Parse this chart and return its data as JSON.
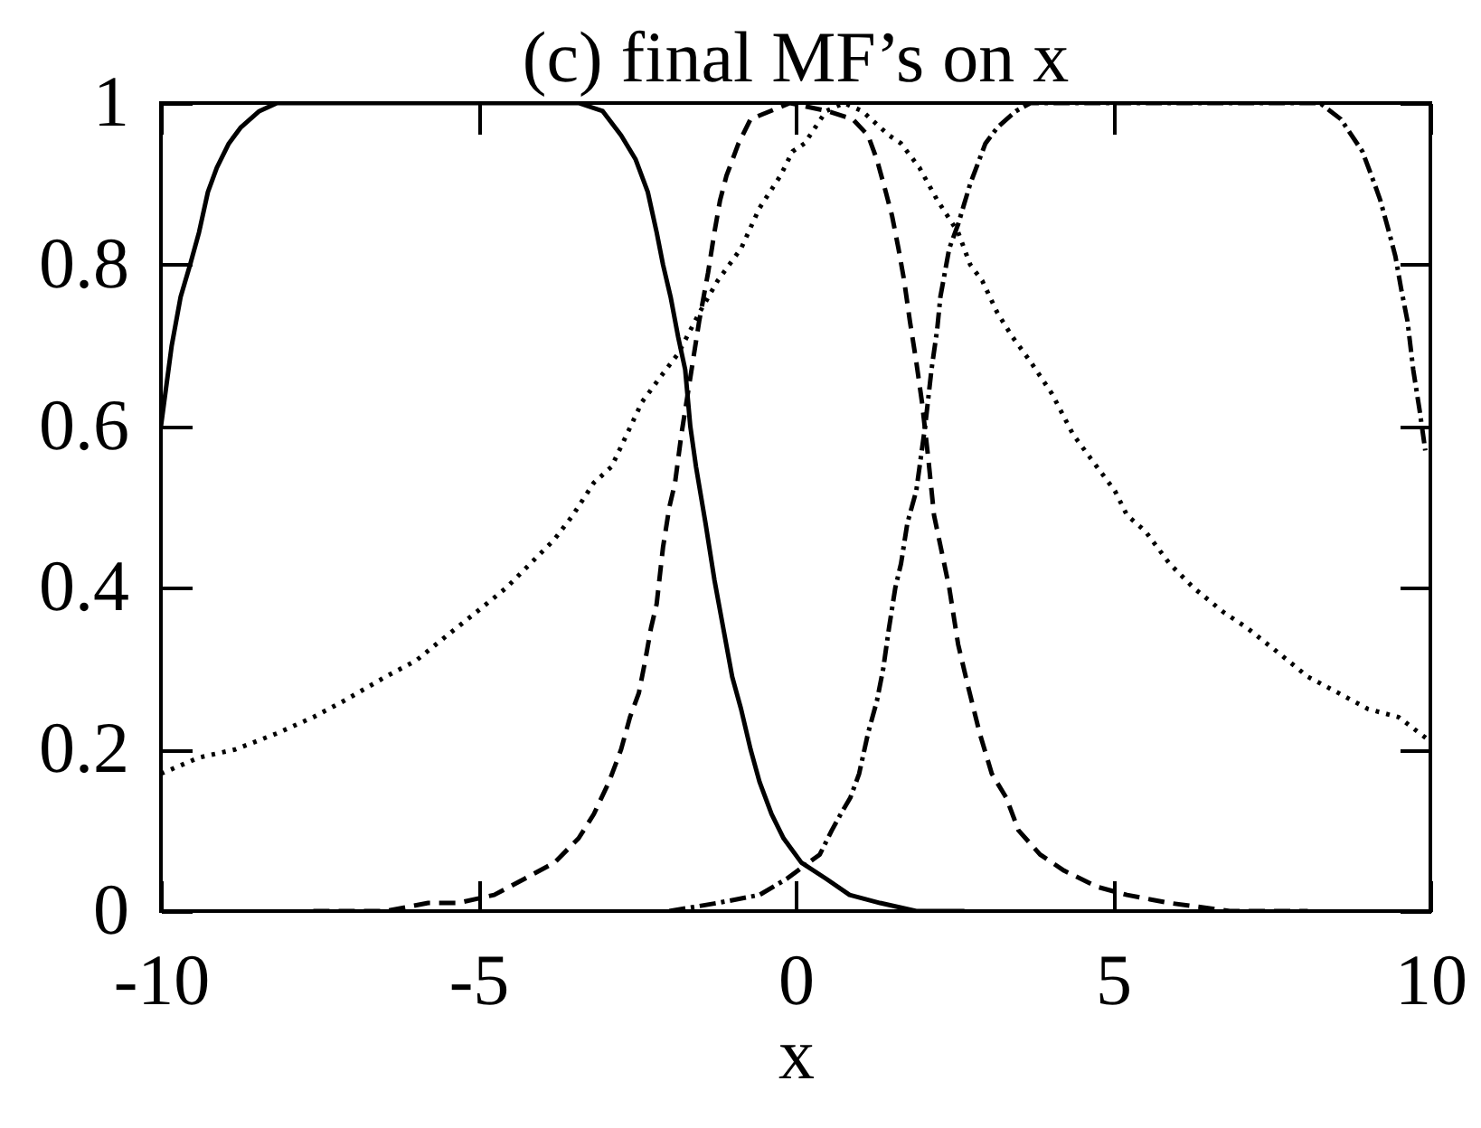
{
  "chart_data": {
    "type": "line",
    "title": "(c) final MF’s on x",
    "xlabel": "x",
    "xlim": [
      -10,
      10
    ],
    "xticks": [
      -10,
      -5,
      0,
      5,
      10
    ],
    "ylim": [
      0,
      1
    ],
    "yticks": [
      0,
      0.2,
      0.4,
      0.6,
      0.8,
      1
    ],
    "grid": false,
    "series": [
      {
        "color": "#000000",
        "line_style": "solid",
        "x": [
          -10.0,
          -9.83,
          -9.69,
          -9.54,
          -9.4,
          -9.26,
          -9.12,
          -8.93,
          -8.74,
          -8.45,
          -8.17,
          -3.42,
          -3.04,
          -2.75,
          -2.52,
          -2.33,
          -2.19,
          -2.09,
          -1.97,
          -1.85,
          -1.74,
          -1.66,
          -1.57,
          -1.42,
          -1.28,
          -1.14,
          -1.0,
          -0.86,
          -0.71,
          -0.57,
          -0.38,
          -0.19,
          0.09,
          0.48,
          0.85,
          1.33,
          1.9,
          2.66
        ],
        "values": [
          0.6,
          0.7,
          0.76,
          0.8,
          0.84,
          0.89,
          0.92,
          0.95,
          0.97,
          0.99,
          1.0,
          1.0,
          0.99,
          0.96,
          0.93,
          0.89,
          0.84,
          0.8,
          0.76,
          0.71,
          0.67,
          0.6,
          0.55,
          0.48,
          0.41,
          0.35,
          0.29,
          0.25,
          0.2,
          0.16,
          0.12,
          0.09,
          0.06,
          0.04,
          0.02,
          0.01,
          0.0,
          0.0
        ]
      },
      {
        "color": "#000000",
        "line_style": "dashed",
        "x": [
          -7.6,
          -6.46,
          -5.79,
          -5.32,
          -4.75,
          -4.27,
          -3.8,
          -3.42,
          -3.18,
          -2.94,
          -2.75,
          -2.61,
          -2.47,
          -2.37,
          -2.28,
          -2.19,
          -2.09,
          -1.99,
          -1.9,
          -1.8,
          -1.52,
          -1.38,
          -1.28,
          -1.19,
          -1.09,
          -0.9,
          -0.71,
          -0.09,
          0.5,
          0.9,
          1.14,
          1.28,
          1.42,
          1.52,
          1.62,
          1.71,
          1.8,
          1.9,
          1.99,
          2.09,
          2.18,
          2.42,
          2.56,
          2.71,
          2.9,
          3.09,
          3.32,
          3.51,
          3.85,
          4.23,
          4.75,
          5.22,
          5.89,
          6.84,
          8.07
        ],
        "values": [
          0.0,
          0.0,
          0.01,
          0.01,
          0.02,
          0.04,
          0.06,
          0.09,
          0.12,
          0.16,
          0.2,
          0.24,
          0.27,
          0.31,
          0.35,
          0.38,
          0.45,
          0.5,
          0.53,
          0.59,
          0.73,
          0.79,
          0.84,
          0.88,
          0.91,
          0.95,
          0.98,
          1.0,
          0.99,
          0.98,
          0.96,
          0.93,
          0.89,
          0.86,
          0.82,
          0.78,
          0.73,
          0.68,
          0.63,
          0.56,
          0.49,
          0.4,
          0.33,
          0.28,
          0.22,
          0.17,
          0.14,
          0.1,
          0.07,
          0.05,
          0.03,
          0.02,
          0.01,
          0.0,
          0.0
        ]
      },
      {
        "color": "#000000",
        "line_style": "dotted",
        "x": [
          -10.0,
          -9.4,
          -8.83,
          -8.17,
          -7.6,
          -7.12,
          -6.46,
          -5.98,
          -5.51,
          -5.03,
          -4.56,
          -4.18,
          -3.8,
          -3.51,
          -3.18,
          -2.9,
          -2.66,
          -2.42,
          -2.14,
          -1.85,
          -1.52,
          -1.23,
          -0.86,
          -0.57,
          -0.24,
          -0.05,
          0.14,
          0.48,
          0.76,
          1.05,
          1.47,
          1.66,
          1.95,
          2.23,
          2.56,
          2.75,
          2.94,
          3.18,
          3.42,
          3.7,
          4.04,
          4.37,
          4.65,
          5.03,
          5.22,
          5.51,
          5.89,
          6.27,
          6.74,
          7.12,
          7.6,
          8.07,
          8.55,
          9.02,
          9.5,
          10.0
        ],
        "values": [
          0.17,
          0.19,
          0.2,
          0.22,
          0.24,
          0.26,
          0.29,
          0.31,
          0.34,
          0.37,
          0.4,
          0.43,
          0.46,
          0.49,
          0.53,
          0.55,
          0.59,
          0.63,
          0.66,
          0.69,
          0.74,
          0.78,
          0.82,
          0.87,
          0.91,
          0.94,
          0.95,
          0.99,
          1.0,
          0.99,
          0.96,
          0.95,
          0.92,
          0.88,
          0.84,
          0.8,
          0.78,
          0.74,
          0.71,
          0.68,
          0.64,
          0.59,
          0.56,
          0.52,
          0.49,
          0.47,
          0.43,
          0.4,
          0.37,
          0.35,
          0.32,
          0.29,
          0.27,
          0.25,
          0.24,
          0.21
        ]
      },
      {
        "color": "#000000",
        "line_style": "dashdot",
        "x": [
          -1.99,
          -1.23,
          -0.57,
          -0.14,
          0.38,
          0.57,
          0.71,
          0.86,
          1.0,
          1.14,
          1.28,
          1.38,
          1.47,
          1.57,
          1.66,
          1.76,
          1.9,
          2.04,
          2.14,
          2.23,
          2.28,
          2.42,
          2.56,
          2.75,
          2.99,
          3.18,
          3.47,
          3.7,
          8.26,
          8.59,
          8.93,
          9.12,
          9.21,
          9.35,
          9.45,
          9.54,
          9.64,
          9.73,
          9.83,
          9.92
        ],
        "values": [
          0.0,
          0.01,
          0.02,
          0.04,
          0.07,
          0.1,
          0.12,
          0.14,
          0.17,
          0.22,
          0.26,
          0.3,
          0.35,
          0.4,
          0.43,
          0.48,
          0.52,
          0.6,
          0.67,
          0.72,
          0.76,
          0.82,
          0.85,
          0.9,
          0.95,
          0.97,
          0.99,
          1.0,
          1.0,
          0.98,
          0.94,
          0.9,
          0.88,
          0.84,
          0.81,
          0.77,
          0.73,
          0.67,
          0.62,
          0.57
        ]
      }
    ]
  }
}
